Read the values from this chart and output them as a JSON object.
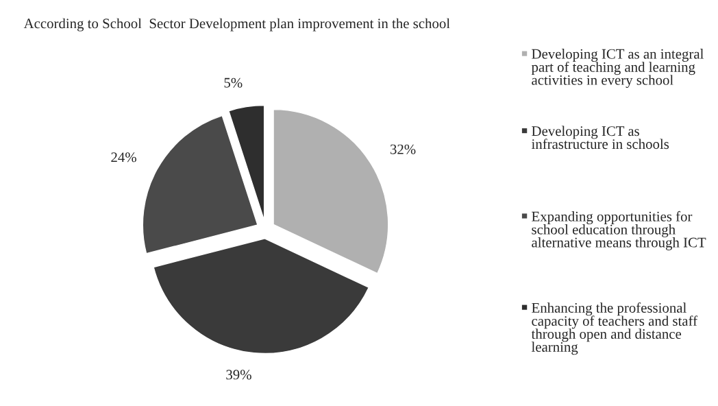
{
  "chart_data": {
    "type": "pie",
    "title": "According to School  Sector Development plan improvement in the school",
    "categories": [
      "Developing ICT as an integral part of teaching and learning activities in every school",
      "Developing ICT as infrastructure in schools",
      "Expanding opportunities for school education through alternative means through ICT",
      "Enhancing the professional capacity of teachers and staff through open and distance learning"
    ],
    "values": [
      32,
      39,
      24,
      5
    ],
    "colors": [
      "#b0b0b0",
      "#3a3a3a",
      "#4a4a4a",
      "#2e2e2e"
    ],
    "value_labels": [
      "32%",
      "39%",
      "24%",
      "5%"
    ],
    "legend": "right"
  }
}
